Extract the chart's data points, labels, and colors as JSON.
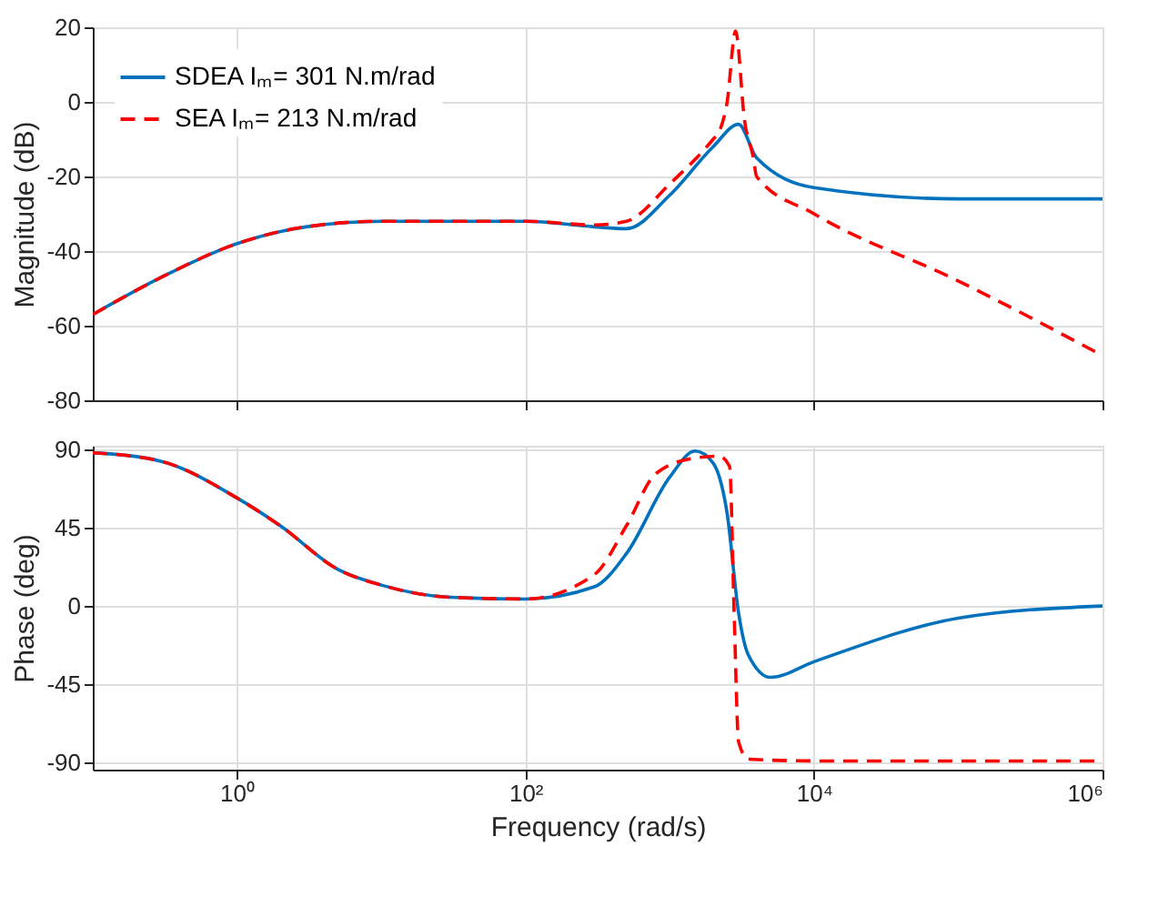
{
  "chart_data": [
    {
      "type": "line",
      "ylabel": "Magnitude (dB)",
      "log": "x",
      "grid": true,
      "legend": "top left",
      "tick_labels": "y",
      "xlim": [
        0.1,
        1000000
      ],
      "xticks": [
        {
          "value": 1,
          "label": null
        },
        {
          "value": 100,
          "label": null
        },
        {
          "value": 10000,
          "label": null
        },
        {
          "value": 1000000,
          "label": null
        }
      ],
      "ylim": [
        -80,
        20
      ],
      "yticks": [
        -80,
        -60,
        -40,
        -20,
        0,
        20
      ],
      "series": [
        {
          "name": "SDEA Iₘ= 301 N.m/rad",
          "color": "#0072bd",
          "line_style": "solid",
          "x": [
            0.1,
            0.3,
            1,
            3,
            10,
            100,
            300,
            500,
            1000,
            2000,
            3000,
            4000,
            10000,
            100000,
            1000000
          ],
          "values": [
            -57,
            -47,
            -38,
            -33.5,
            -32,
            -32,
            -33.5,
            -34,
            -25,
            -12,
            -6,
            -15,
            -23,
            -26,
            -26
          ]
        },
        {
          "name": "SEA Iₘ= 213 N.m/rad",
          "color": "#ff0000",
          "line_style": "dashed",
          "x": [
            0.1,
            0.3,
            1,
            3,
            10,
            100,
            300,
            500,
            1000,
            2000,
            2200,
            2500,
            2860,
            3300,
            3800,
            4000,
            10000,
            100000,
            1000000
          ],
          "values": [
            -57,
            -47,
            -38,
            -33.5,
            -32,
            -32,
            -33,
            -32,
            -22,
            -10,
            -8,
            0,
            19,
            -5,
            -15,
            -20,
            -30,
            -48,
            -68
          ]
        }
      ]
    },
    {
      "type": "line",
      "xlabel": "Frequency  (rad/s)",
      "ylabel": "Phase (deg)",
      "log": "x",
      "grid": true,
      "xlim": [
        0.1,
        1000000
      ],
      "xticks": [
        {
          "value": 1,
          "label": "10⁰"
        },
        {
          "value": 100,
          "label": "10²"
        },
        {
          "value": 10000,
          "label": "10⁴"
        },
        {
          "value": 1000000,
          "label": "10⁶"
        }
      ],
      "ylim": [
        -94,
        92
      ],
      "yticks": [
        -90,
        -45,
        0,
        45,
        90
      ],
      "series": [
        {
          "color": "#0072bd",
          "line_style": "solid",
          "x": [
            0.1,
            0.3,
            1,
            2,
            5,
            10,
            30,
            100,
            300,
            500,
            1000,
            1500,
            2000,
            2500,
            3000,
            3500,
            5000,
            10000,
            100000,
            1000000
          ],
          "values": [
            88,
            83,
            62,
            46,
            21,
            12,
            5,
            4,
            11,
            30,
            74,
            89,
            82,
            53,
            -4,
            -28,
            -41,
            -32,
            -7,
            0
          ]
        },
        {
          "color": "#ff0000",
          "line_style": "dashed",
          "x": [
            0.1,
            0.3,
            1,
            2,
            5,
            10,
            30,
            100,
            300,
            500,
            800,
            1500,
            2200,
            2600,
            2800,
            3000,
            3500,
            10000,
            100000,
            1000000
          ],
          "values": [
            88,
            83,
            62,
            46,
            21,
            12,
            5,
            4,
            18,
            46,
            76,
            85,
            86,
            80,
            -7,
            -78,
            -88,
            -89,
            -89,
            -89
          ]
        }
      ]
    }
  ]
}
